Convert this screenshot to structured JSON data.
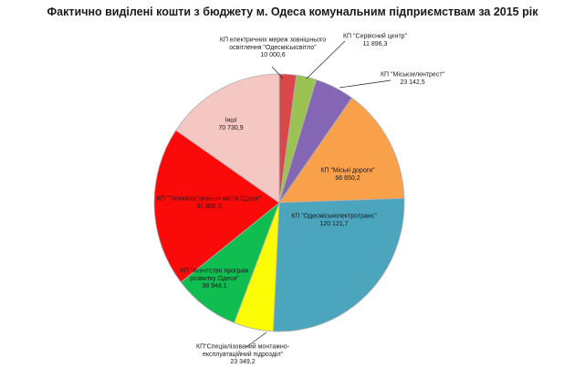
{
  "chart_data": {
    "type": "pie",
    "title": "Фактично виділені кошти з бюджету м. Одеса комунальним підприємствам за 2015 рік",
    "legend": "none",
    "slices": [
      {
        "label": [
          "КП електричних мереж зовнішнього",
          "освітлення \"Одесміськсвітло\""
        ],
        "value_text": "10 000,6",
        "value": 10000.6,
        "color": "#d9474a"
      },
      {
        "label": [
          "КП \"Сервісний центр\""
        ],
        "value_text": "11 896,3",
        "value": 11896.3,
        "color": "#9bc354"
      },
      {
        "label": [
          "КП \"Міськзелентрест\""
        ],
        "value_text": "23 142,5",
        "value": 23142.5,
        "color": "#8566b4"
      },
      {
        "label": [
          "КП \"Міські дороги\""
        ],
        "value_text": "66 650,2",
        "value": 66650.2,
        "color": "#f9a04b"
      },
      {
        "label": [
          "КП \"Одесміськелектротранс\""
        ],
        "value_text": "120 121,7",
        "value": 120121.7,
        "color": "#4aa5bd"
      },
      {
        "label": [
          "КП\"Спеціалізований монтажно-",
          "експлуатаційний підрозділ\""
        ],
        "value_text": "23 349,2",
        "value": 23349.2,
        "color": "#fbfb05"
      },
      {
        "label": [
          "КП \"Агентство програм",
          "розвитку Одеси\""
        ],
        "value_text": "38 948,1",
        "value": 38948.1,
        "color": "#0fbd50"
      },
      {
        "label": [
          "КП \"Теплопостачання міста Одеси\""
        ],
        "value_text": "91 800,0",
        "value": 91800.0,
        "color": "#fb0a0a"
      },
      {
        "label": [
          "Інші"
        ],
        "value_text": "70 730,9",
        "value": 70730.9,
        "color": "#f4c7c3"
      }
    ]
  }
}
